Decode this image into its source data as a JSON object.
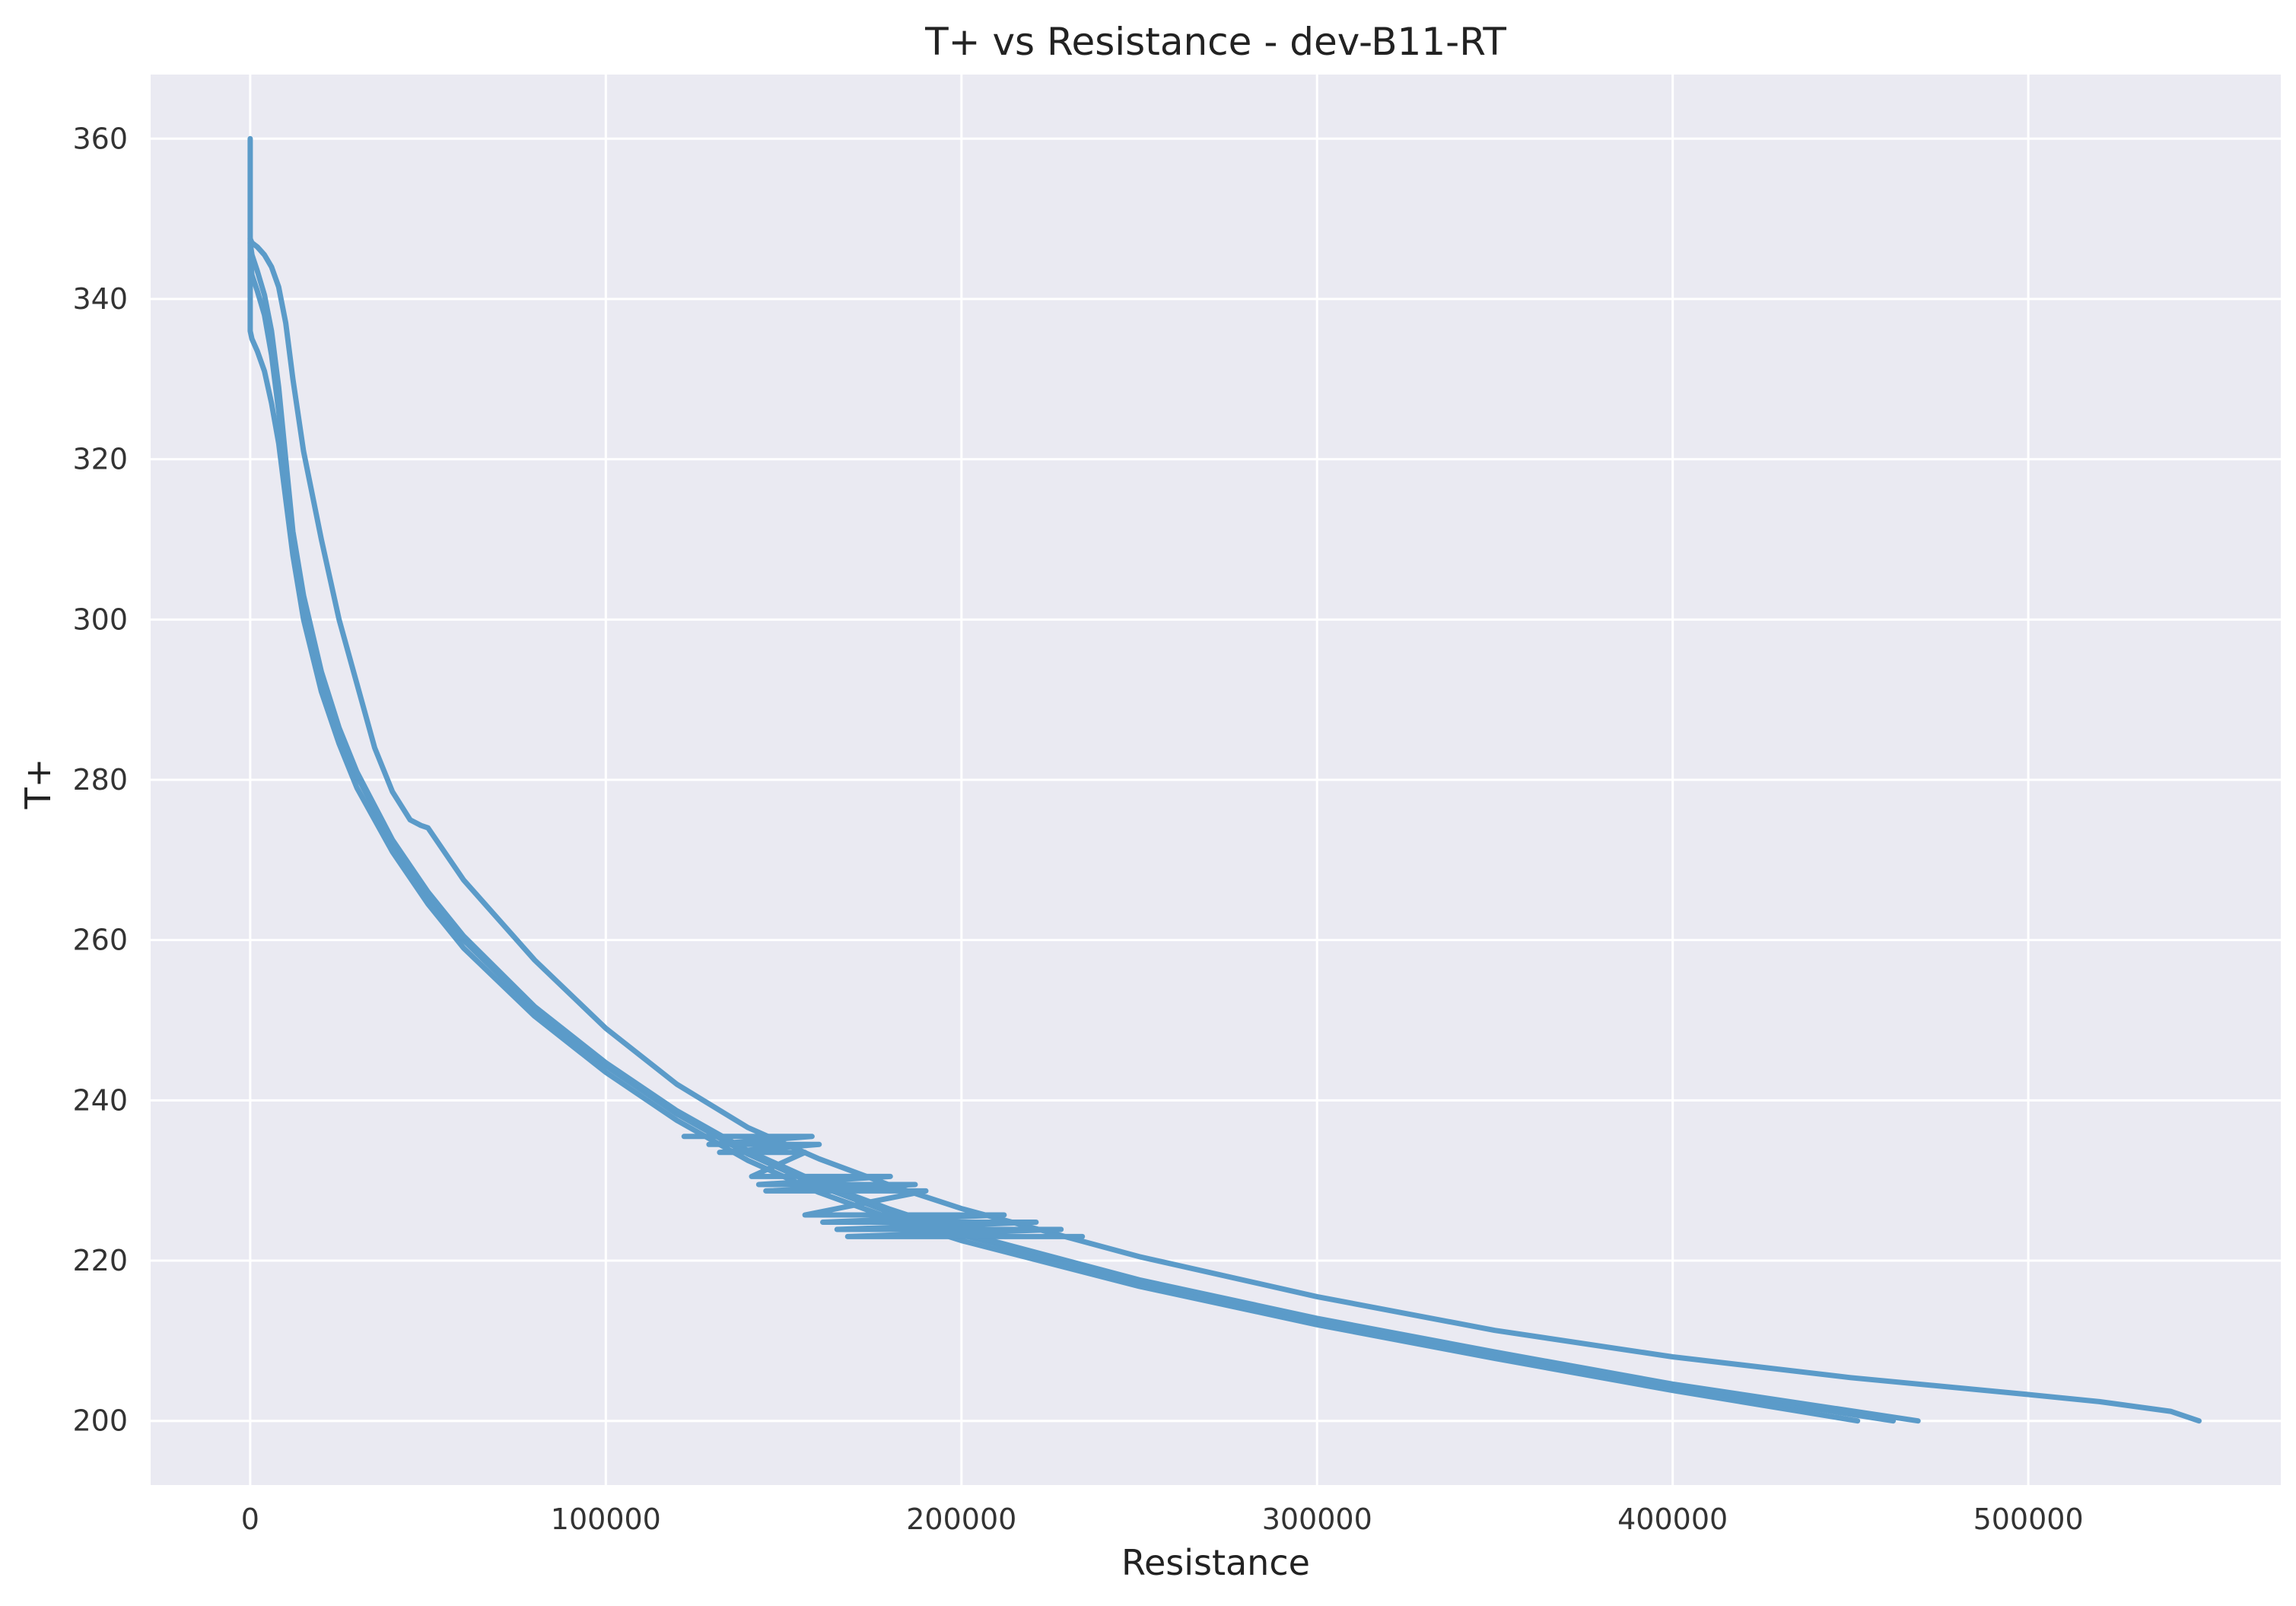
{
  "chart_data": {
    "type": "line",
    "title": "T+ vs Resistance - dev-B11-RT",
    "xlabel": "Resistance",
    "ylabel": "T+",
    "xlim": [
      -28000,
      571000
    ],
    "ylim": [
      192,
      368
    ],
    "x_ticks": [
      0,
      100000,
      200000,
      300000,
      400000,
      500000
    ],
    "y_ticks": [
      200,
      220,
      240,
      260,
      280,
      300,
      320,
      340,
      360
    ],
    "grid": true,
    "legend": "none",
    "colors": {
      "background": "#eaeaf2",
      "grid": "#ffffff",
      "line": "#5b9bc9"
    },
    "series": [
      {
        "x": [
          452000,
          400000,
          350000,
          300000,
          250000,
          200000,
          180000,
          160000,
          140000,
          120000,
          100000,
          80000,
          60000,
          50000,
          40000,
          30000,
          25000,
          20000,
          15000,
          12000,
          10000,
          8000,
          6000,
          4000,
          2000,
          500,
          0,
          0,
          0,
          0
        ],
        "y": [
          200,
          203.8,
          207.8,
          212,
          216.8,
          222.5,
          225.3,
          228.5,
          232.5,
          237.5,
          243.5,
          250.5,
          259,
          264.5,
          271,
          279,
          284.5,
          291,
          300,
          308,
          315,
          322,
          327,
          331,
          333.5,
          335,
          336,
          345,
          360,
          347
        ]
      },
      {
        "x": [
          462000,
          400000,
          350000,
          300000,
          250000,
          200000,
          180000,
          160000,
          140000,
          120000,
          100000,
          80000,
          60000,
          50000,
          40000,
          30000,
          25000,
          20000,
          15000,
          12000,
          10000,
          8000,
          6000,
          4000,
          2000,
          500,
          0
        ],
        "y": [
          200,
          204.3,
          208.3,
          212.5,
          217.3,
          223.2,
          226,
          229.3,
          233.3,
          238.3,
          244.3,
          251.3,
          260,
          265.5,
          272,
          280.5,
          286,
          293,
          302,
          310,
          318,
          326,
          333,
          338,
          341,
          343,
          345
        ]
      },
      {
        "x": [
          469000,
          400000,
          350000,
          300000,
          250000,
          200000,
          180000,
          160000,
          140000,
          120000,
          100000,
          80000,
          60000,
          50000,
          40000,
          30000,
          25000,
          20000,
          15000,
          12000,
          10000,
          8000,
          6000,
          4000,
          2000,
          500,
          0
        ],
        "y": [
          200,
          204.6,
          208.6,
          212.8,
          217.6,
          223.5,
          226.4,
          229.7,
          233.7,
          238.7,
          244.7,
          251.7,
          260.5,
          266,
          272.5,
          281,
          286.5,
          293.5,
          303,
          311,
          320,
          329,
          336,
          340.5,
          343.5,
          345.5,
          347
        ]
      },
      {
        "x": [
          548000,
          540000,
          520000,
          500000,
          450000,
          400000,
          350000,
          300000,
          250000,
          200000,
          180000,
          160000,
          140000,
          120000,
          100000,
          80000,
          60000,
          50000,
          48000,
          45000,
          40000,
          35000,
          30000,
          25000,
          20000,
          15000,
          12000,
          10000,
          8000,
          6000,
          4000,
          2000,
          500,
          0
        ],
        "y": [
          200,
          201.2,
          202.4,
          203.3,
          205.4,
          208,
          211.3,
          215.5,
          220.5,
          226.5,
          229.4,
          232.7,
          236.6,
          242,
          249,
          257.5,
          267.5,
          274,
          274.3,
          275,
          278.5,
          284,
          292,
          300,
          310,
          321,
          330,
          337,
          341.5,
          344,
          345.5,
          346.5,
          347,
          347.5
        ]
      },
      {
        "x": [
          122000,
          158000,
          129000,
          160000,
          132000,
          156000,
          141000,
          180000,
          143000,
          187000,
          145000,
          190000,
          156000,
          212000,
          161000,
          221000,
          165000,
          228000,
          168000,
          234000
        ],
        "y": [
          235.5,
          235.5,
          234.5,
          234.5,
          233.5,
          233.5,
          230.5,
          230.5,
          229.5,
          229.5,
          228.7,
          228.7,
          225.7,
          225.7,
          224.8,
          224.8,
          223.9,
          223.9,
          223,
          223
        ]
      }
    ]
  }
}
